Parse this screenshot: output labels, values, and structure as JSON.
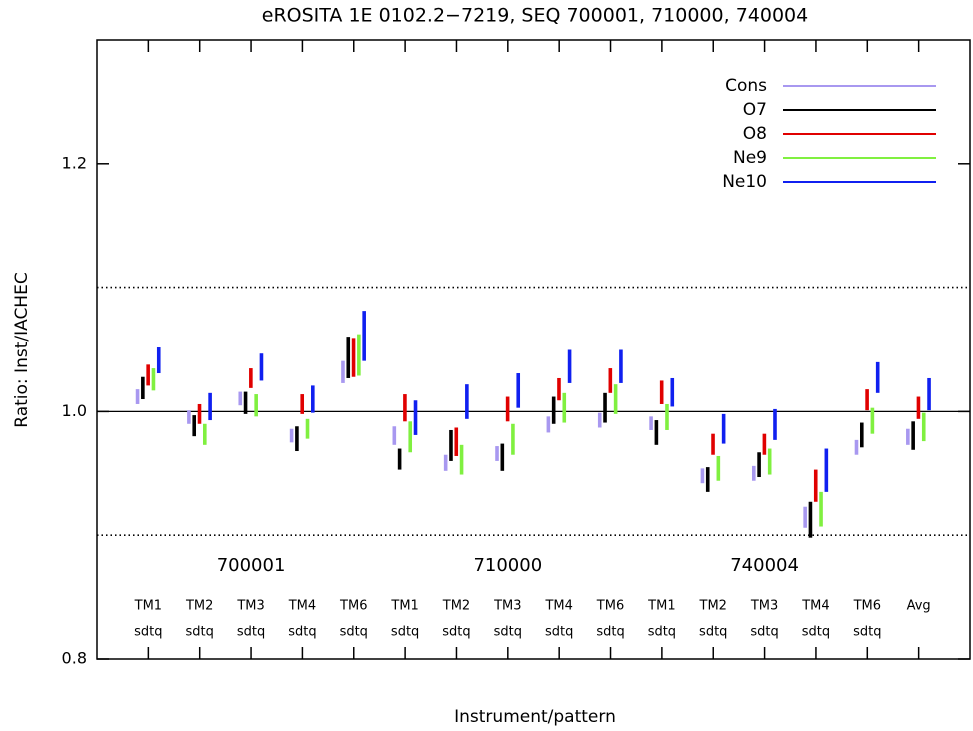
{
  "chart_data": {
    "type": "range_bars",
    "title": "eROSITA 1E 0102.2−7219, SEQ 700001, 710000, 740004",
    "xlabel": "Instrument/pattern",
    "ylabel": "Ratio: Inst/IACHEC",
    "categories": [
      "TM1",
      "TM2",
      "TM3",
      "TM4",
      "TM6",
      "TM1",
      "TM2",
      "TM3",
      "TM4",
      "TM6",
      "TM1",
      "TM2",
      "TM3",
      "TM4",
      "TM6",
      "Avg"
    ],
    "patterns": [
      "sdtq",
      "sdtq",
      "sdtq",
      "sdtq",
      "sdtq",
      "sdtq",
      "sdtq",
      "sdtq",
      "sdtq",
      "sdtq",
      "sdtq",
      "sdtq",
      "sdtq",
      "sdtq",
      "sdtq",
      null
    ],
    "groups": [
      {
        "label": "700001",
        "first": 0,
        "last": 4
      },
      {
        "label": "710000",
        "first": 5,
        "last": 9
      },
      {
        "label": "740004",
        "first": 10,
        "last": 14
      }
    ],
    "ylim": [
      0.8,
      1.3
    ],
    "yticks": [
      0.8,
      {
        "value": 1,
        "label": "1.0"
      },
      1.2
    ],
    "reference_lines": [
      {
        "value": 1.1,
        "style": "dotted"
      },
      {
        "value": 1,
        "style": "solid"
      },
      {
        "value": 0.9,
        "style": "dotted"
      }
    ],
    "legend": "upper right",
    "series": [
      {
        "name": "Cons",
        "color": "#a898f0",
        "low": [
          1.006,
          0.99,
          1.005,
          0.975,
          1.023,
          0.973,
          0.952,
          0.96,
          0.983,
          0.987,
          0.985,
          0.942,
          0.944,
          0.906,
          0.965,
          0.973
        ],
        "high": [
          1.018,
          1.001,
          1.016,
          0.986,
          1.041,
          0.988,
          0.965,
          0.972,
          0.996,
          0.999,
          0.996,
          0.954,
          0.956,
          0.923,
          0.977,
          0.986
        ]
      },
      {
        "name": "O7",
        "color": "#000000",
        "low": [
          1.01,
          0.98,
          0.998,
          0.968,
          1.027,
          0.953,
          0.96,
          0.952,
          0.99,
          0.991,
          0.973,
          0.935,
          0.947,
          0.898,
          0.971,
          0.969
        ],
        "high": [
          1.028,
          0.997,
          1.016,
          0.988,
          1.06,
          0.97,
          0.985,
          0.974,
          1.012,
          1.015,
          0.993,
          0.955,
          0.967,
          0.927,
          0.991,
          0.992
        ]
      },
      {
        "name": "O8",
        "color": "#e00000",
        "low": [
          1.021,
          0.99,
          1.019,
          0.998,
          1.028,
          0.992,
          0.964,
          0.992,
          1.009,
          1.015,
          1.006,
          0.965,
          0.965,
          0.927,
          1.001,
          0.994
        ],
        "high": [
          1.038,
          1.006,
          1.035,
          1.014,
          1.059,
          1.014,
          0.987,
          1.012,
          1.027,
          1.035,
          1.025,
          0.982,
          0.982,
          0.953,
          1.018,
          1.012
        ]
      },
      {
        "name": "Ne9",
        "color": "#80f040",
        "low": [
          1.017,
          0.973,
          0.996,
          0.978,
          1.029,
          0.967,
          0.949,
          0.965,
          0.991,
          0.998,
          0.985,
          0.944,
          0.949,
          0.907,
          0.982,
          0.976
        ],
        "high": [
          1.035,
          0.99,
          1.014,
          0.994,
          1.062,
          0.992,
          0.973,
          0.99,
          1.015,
          1.022,
          1.006,
          0.964,
          0.97,
          0.935,
          1.003,
          0.999
        ]
      },
      {
        "name": "Ne10",
        "color": "#1020f0",
        "low": [
          1.031,
          0.993,
          1.025,
          0.999,
          1.041,
          0.981,
          0.994,
          1.003,
          1.023,
          1.023,
          1.004,
          0.974,
          0.977,
          0.935,
          1.015,
          1.001
        ],
        "high": [
          1.052,
          1.015,
          1.047,
          1.021,
          1.081,
          1.009,
          1.022,
          1.031,
          1.05,
          1.05,
          1.027,
          0.998,
          1.002,
          0.97,
          1.04,
          1.027
        ]
      }
    ]
  }
}
